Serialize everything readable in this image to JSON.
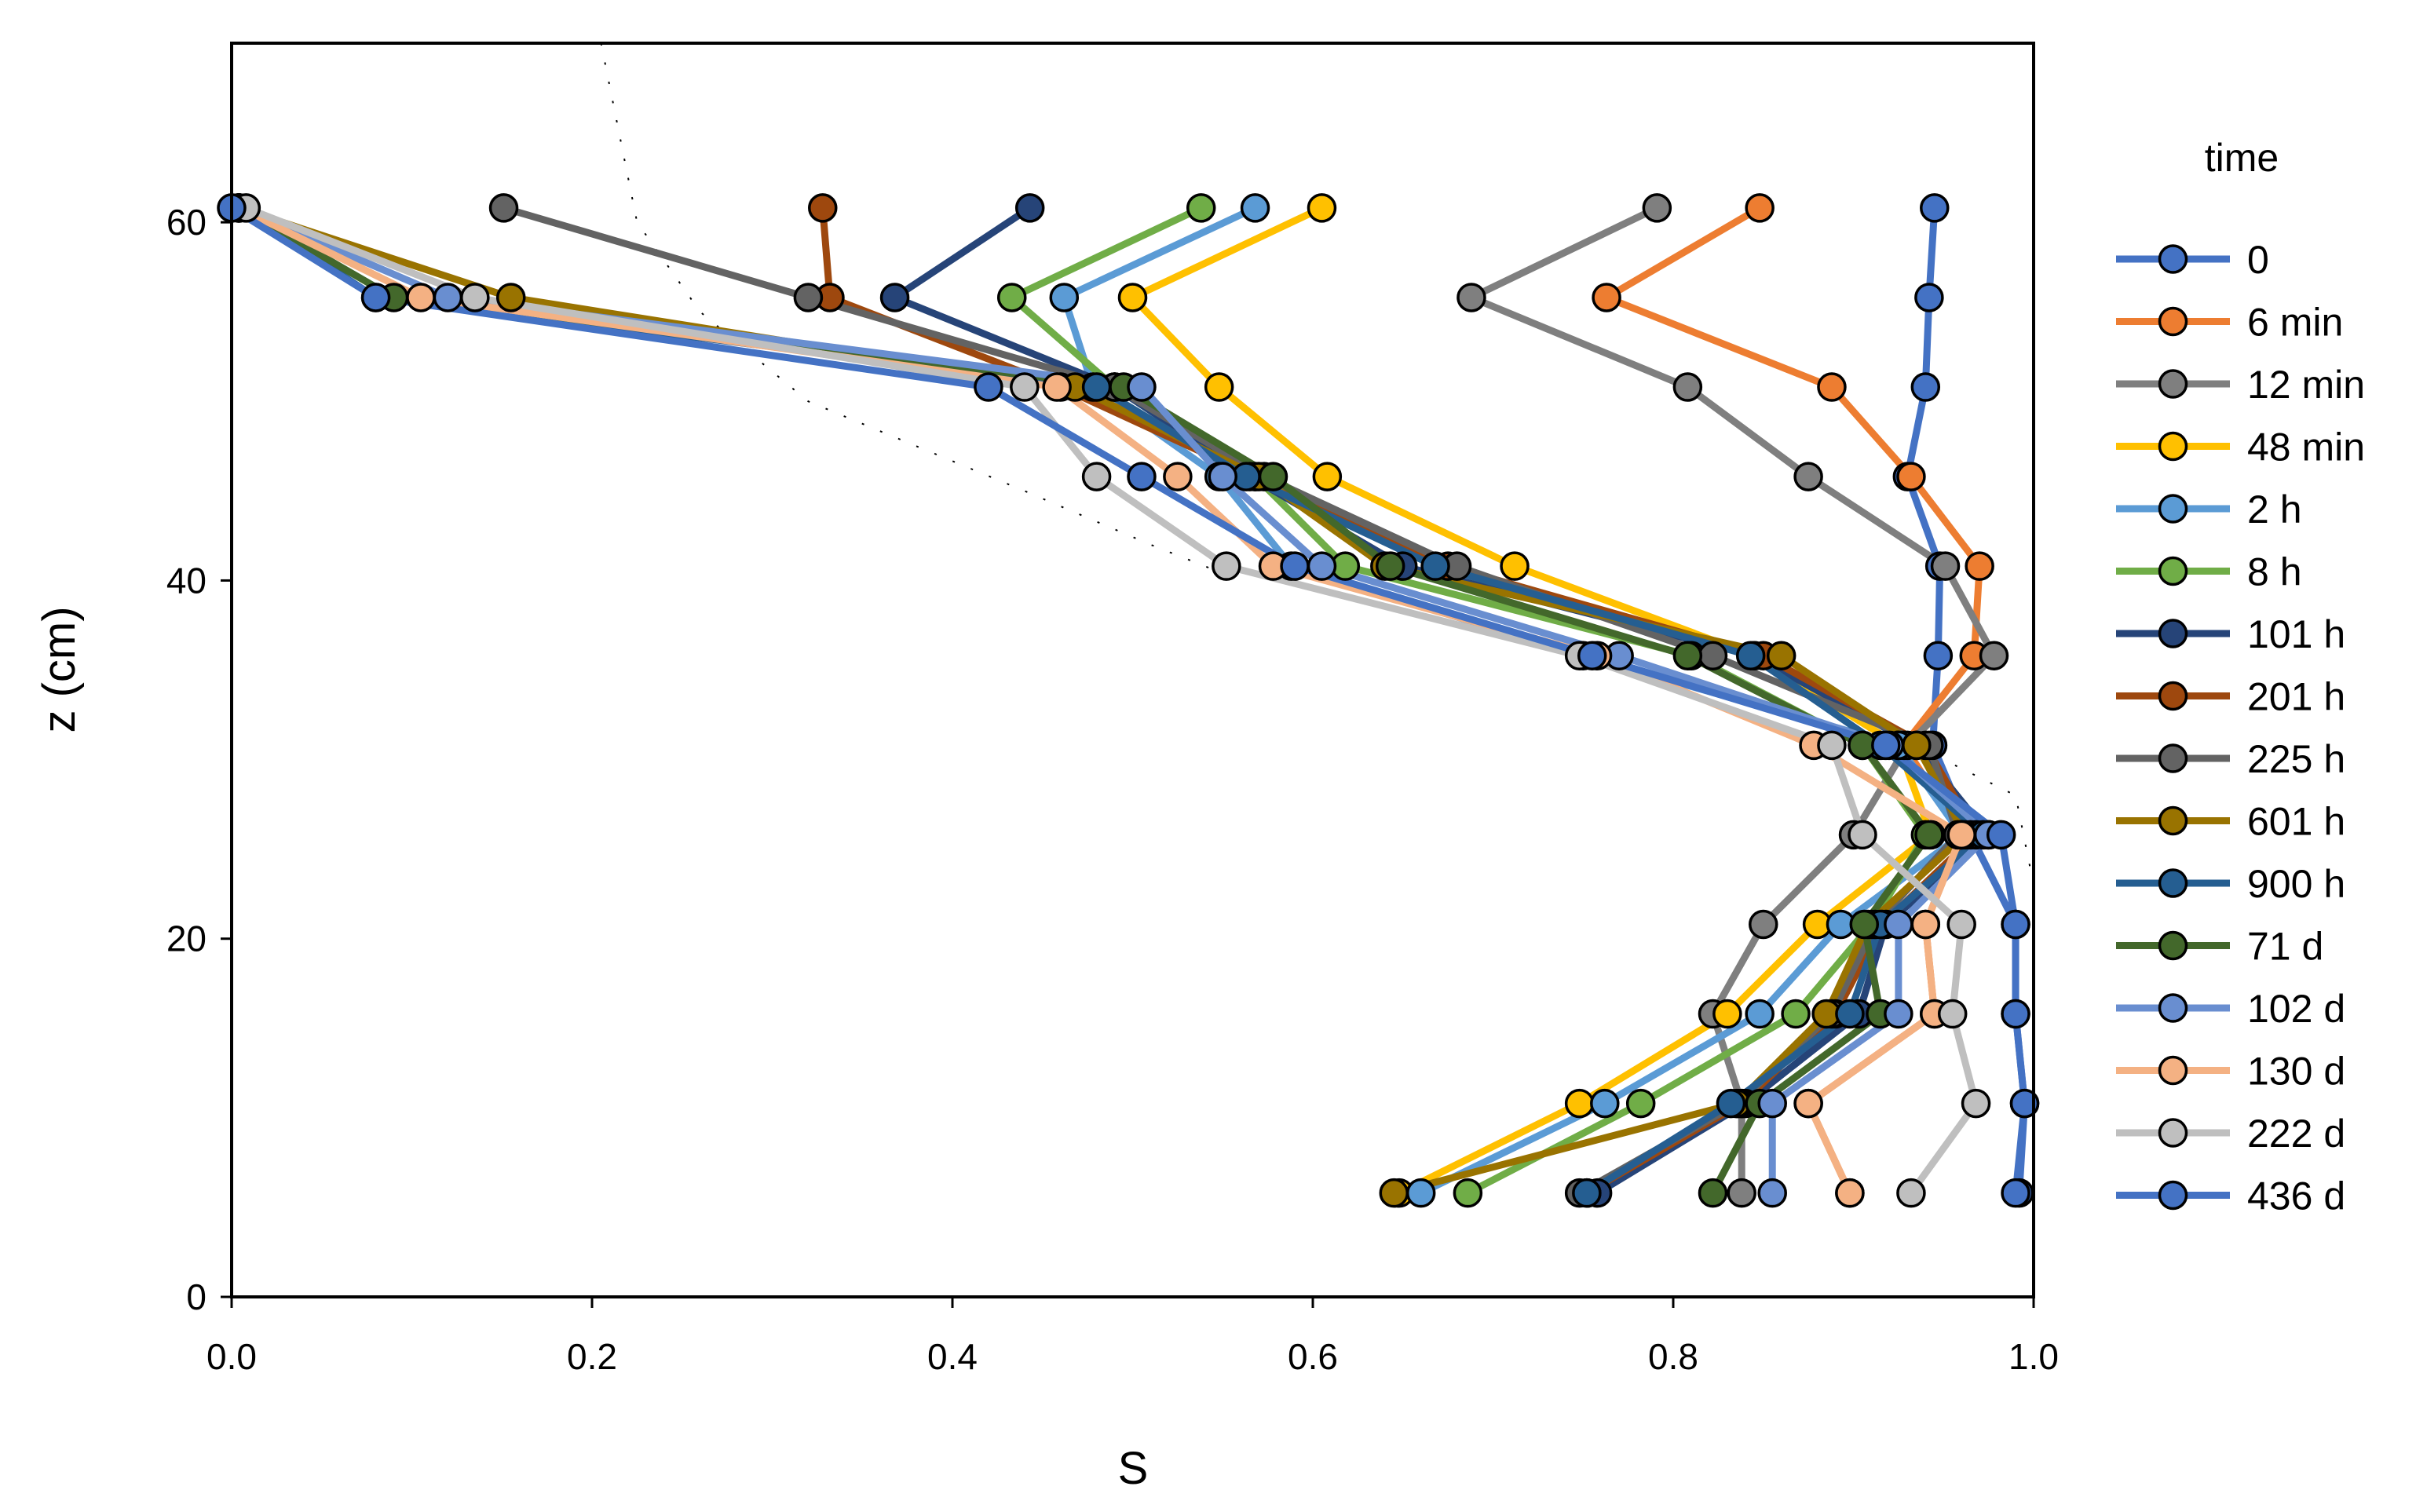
{
  "chart_data": {
    "type": "line",
    "xlabel": "S",
    "ylabel": "z (cm)",
    "xlim": [
      0,
      1
    ],
    "ylim": [
      0,
      70
    ],
    "xticks": [
      0,
      0.2,
      0.4,
      0.6,
      0.8,
      1.0
    ],
    "xtick_labels": [
      "0.0",
      "0.2",
      "0.4",
      "0.6",
      "0.8",
      "1.0"
    ],
    "yticks": [
      0,
      20,
      40,
      60
    ],
    "ytick_labels": [
      "0",
      "20",
      "40",
      "60"
    ],
    "grid": false,
    "legend_title": "time",
    "legend_position": "right",
    "reference_curves": [
      {
        "name": "dashed-reference-left",
        "color": "#000000",
        "style": "dashed",
        "points": [
          [
            0.205,
            70
          ],
          [
            0.215,
            65
          ],
          [
            0.225,
            60
          ],
          [
            0.26,
            55
          ],
          [
            0.32,
            50
          ],
          [
            0.44,
            45
          ],
          [
            0.51,
            42
          ],
          [
            0.56,
            40
          ]
        ]
      },
      {
        "name": "dashed-reference-right",
        "color": "#000000",
        "style": "dashed",
        "points": [
          [
            0.9,
            33
          ],
          [
            0.95,
            30
          ],
          [
            0.99,
            28
          ],
          [
            1.0,
            23
          ],
          [
            1.0,
            14
          ],
          [
            1.0,
            4
          ]
        ]
      }
    ],
    "series": [
      {
        "name": "0",
        "color": "#4472C4",
        "S": [
          0.945,
          0.942,
          0.94,
          0.93,
          0.948,
          0.947,
          0.944,
          0.965,
          0.99,
          0.99,
          0.995,
          0.992
        ],
        "z": [
          60.8,
          55.8,
          50.8,
          45.8,
          40.8,
          35.8,
          30.8,
          25.8,
          20.8,
          15.8,
          10.8,
          5.8
        ]
      },
      {
        "name": "6 min",
        "color": "#ED7D31",
        "S": [
          0.848,
          0.763,
          0.888,
          0.932,
          0.97,
          0.967,
          0.928,
          0.96,
          0.94,
          0.945,
          0.875,
          0.898
        ],
        "z": [
          60.8,
          55.8,
          50.8,
          45.8,
          40.8,
          35.8,
          30.8,
          25.8,
          20.8,
          15.8,
          10.8,
          5.8
        ]
      },
      {
        "name": "12 min",
        "color": "#7F7F7F",
        "S": [
          0.791,
          0.688,
          0.808,
          0.875,
          0.951,
          0.978,
          0.93,
          0.9,
          0.85,
          0.822,
          0.838,
          0.838
        ],
        "z": [
          60.8,
          55.8,
          50.8,
          45.8,
          40.8,
          35.8,
          30.8,
          25.8,
          20.8,
          15.8,
          10.8,
          5.8
        ]
      },
      {
        "name": "48 min",
        "color": "#FFC000",
        "S": [
          0.605,
          0.5,
          0.548,
          0.608,
          0.712,
          0.845,
          0.925,
          0.943,
          0.88,
          0.83,
          0.748,
          0.648
        ],
        "z": [
          60.8,
          55.8,
          50.8,
          45.8,
          40.8,
          35.8,
          30.8,
          25.8,
          20.8,
          15.8,
          10.8,
          5.8
        ]
      },
      {
        "name": "2 h",
        "color": "#5B9BD5",
        "S": [
          0.568,
          0.462,
          0.478,
          0.548,
          0.588,
          0.75,
          0.925,
          0.96,
          0.893,
          0.848,
          0.762,
          0.66
        ],
        "z": [
          60.8,
          55.8,
          50.8,
          45.8,
          40.8,
          35.8,
          30.8,
          25.8,
          20.8,
          15.8,
          10.8,
          5.8
        ]
      },
      {
        "name": "8 h",
        "color": "#70AD47",
        "S": [
          0.538,
          0.433,
          0.49,
          0.568,
          0.618,
          0.81,
          0.905,
          0.94,
          0.91,
          0.868,
          0.782,
          0.686
        ],
        "z": [
          60.8,
          55.8,
          50.8,
          45.8,
          40.8,
          35.8,
          30.8,
          25.8,
          20.8,
          15.8,
          10.8,
          5.8
        ]
      },
      {
        "name": "101 h",
        "color": "#264478",
        "S": [
          0.443,
          0.368,
          0.49,
          0.565,
          0.65,
          0.845,
          0.935,
          0.975,
          0.918,
          0.903,
          0.84,
          0.758
        ],
        "z": [
          60.8,
          55.8,
          50.8,
          45.8,
          40.8,
          35.8,
          30.8,
          25.8,
          20.8,
          15.8,
          10.8,
          5.8
        ]
      },
      {
        "name": "201 h",
        "color": "#9E480E",
        "S": [
          0.328,
          0.332,
          0.46,
          0.568,
          0.675,
          0.85,
          0.94,
          0.968,
          0.916,
          0.89,
          0.838,
          0.752
        ],
        "z": [
          60.8,
          55.8,
          50.8,
          45.8,
          40.8,
          35.8,
          30.8,
          25.8,
          20.8,
          15.8,
          10.8,
          5.8
        ]
      },
      {
        "name": "225 h",
        "color": "#636363",
        "S": [
          0.151,
          0.32,
          0.49,
          0.573,
          0.68,
          0.822,
          0.942,
          0.958,
          0.912,
          0.888,
          0.836,
          0.748
        ],
        "z": [
          60.8,
          55.8,
          50.8,
          45.8,
          40.8,
          35.8,
          30.8,
          25.8,
          20.8,
          15.8,
          10.8,
          5.8
        ]
      },
      {
        "name": "601 h",
        "color": "#997300",
        "S": [
          0.004,
          0.155,
          0.468,
          0.57,
          0.64,
          0.86,
          0.935,
          0.962,
          0.908,
          0.885,
          0.835,
          0.645
        ],
        "z": [
          60.8,
          55.8,
          50.8,
          45.8,
          40.8,
          35.8,
          30.8,
          25.8,
          20.8,
          15.8,
          10.8,
          5.8
        ]
      },
      {
        "name": "900 h",
        "color": "#255E91",
        "S": [
          0.004,
          0.08,
          0.48,
          0.563,
          0.668,
          0.843,
          0.915,
          0.972,
          0.915,
          0.898,
          0.832,
          0.752
        ],
        "z": [
          60.8,
          55.8,
          50.8,
          45.8,
          40.8,
          35.8,
          30.8,
          25.8,
          20.8,
          15.8,
          10.8,
          5.8
        ]
      },
      {
        "name": "71 d",
        "color": "#43682B",
        "S": [
          0.004,
          0.09,
          0.495,
          0.578,
          0.643,
          0.808,
          0.905,
          0.942,
          0.906,
          0.915,
          0.848,
          0.822
        ],
        "z": [
          60.8,
          55.8,
          50.8,
          45.8,
          40.8,
          35.8,
          30.8,
          25.8,
          20.8,
          15.8,
          10.8,
          5.8
        ]
      },
      {
        "name": "102 d",
        "color": "#698ED0",
        "S": [
          0.004,
          0.12,
          0.505,
          0.55,
          0.605,
          0.77,
          0.92,
          0.975,
          0.925,
          0.925,
          0.855,
          0.855
        ],
        "z": [
          60.8,
          55.8,
          50.8,
          45.8,
          40.8,
          35.8,
          30.8,
          25.8,
          20.8,
          15.8,
          10.8,
          5.8
        ]
      },
      {
        "name": "130 d",
        "color": "#F4B183",
        "S": [
          0.004,
          0.105,
          0.458,
          0.525,
          0.578,
          0.758,
          0.878,
          0.96,
          0.94,
          0.945,
          0.875,
          0.898
        ],
        "z": [
          60.8,
          55.8,
          50.8,
          45.8,
          40.8,
          35.8,
          30.8,
          25.8,
          20.8,
          15.8,
          10.8,
          5.8
        ]
      },
      {
        "name": "222 d",
        "color": "#BFBFBF",
        "S": [
          0.008,
          0.135,
          0.44,
          0.48,
          0.552,
          0.748,
          0.888,
          0.905,
          0.96,
          0.955,
          0.968,
          0.932
        ],
        "z": [
          60.8,
          55.8,
          50.8,
          45.8,
          40.8,
          35.8,
          30.8,
          25.8,
          20.8,
          15.8,
          10.8,
          5.8
        ]
      },
      {
        "name": "436 d",
        "color": "#4472C4",
        "S": [
          0.0,
          0.08,
          0.42,
          0.505,
          0.59,
          0.755,
          0.918,
          0.982,
          0.99,
          0.99,
          0.995,
          0.99
        ],
        "z": [
          60.8,
          55.8,
          50.8,
          45.8,
          40.8,
          35.8,
          30.8,
          25.8,
          20.8,
          15.8,
          10.8,
          5.8
        ]
      }
    ]
  }
}
